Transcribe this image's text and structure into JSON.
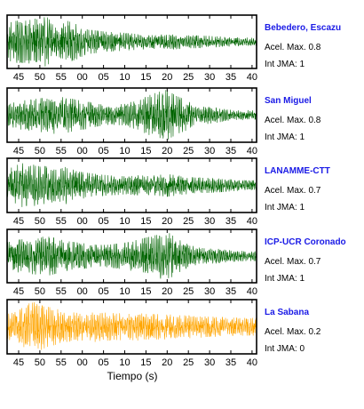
{
  "chart_data": {
    "type": "line",
    "xlabel": "Tiempo (s)",
    "x_tick_labels": [
      "45",
      "50",
      "55",
      "00",
      "05",
      "10",
      "15",
      "20",
      "25",
      "30",
      "35",
      "40"
    ],
    "panels": [
      {
        "station": "Bebedero, Escazu",
        "color": "#006400",
        "accel_max": "Acel. Max. 0.8",
        "int_jma": "Int JMA: 1",
        "envelope": [
          0.75,
          0.85,
          0.85,
          0.95,
          1.0,
          0.55,
          0.85,
          0.7,
          0.5,
          0.45,
          0.4,
          0.38,
          0.35,
          0.32,
          0.3,
          0.28,
          0.28,
          0.3,
          0.26,
          0.26,
          0.24,
          0.22,
          0.2,
          0.18,
          0.17,
          0.15
        ]
      },
      {
        "station": "San Miguel",
        "color": "#006400",
        "accel_max": "Acel. Max. 0.8",
        "int_jma": "Int JMA: 1",
        "envelope": [
          0.4,
          0.55,
          0.6,
          0.65,
          0.7,
          0.75,
          0.7,
          0.6,
          0.55,
          0.45,
          0.4,
          0.38,
          0.5,
          0.55,
          0.75,
          0.9,
          1.0,
          0.75,
          0.6,
          0.3,
          0.35,
          0.3,
          0.22,
          0.2,
          0.2,
          0.18
        ]
      },
      {
        "station": "LANAMME-CTT",
        "color": "#006400",
        "accel_max": "Acel. Max. 0.7",
        "int_jma": "Int JMA: 1",
        "envelope": [
          0.55,
          0.9,
          0.85,
          0.8,
          0.75,
          0.6,
          0.75,
          0.55,
          0.5,
          0.45,
          0.4,
          0.38,
          0.35,
          0.4,
          0.38,
          0.4,
          0.45,
          0.4,
          0.35,
          0.3,
          0.3,
          0.28,
          0.25,
          0.22,
          0.2,
          0.2
        ]
      },
      {
        "station": "ICP-UCR Coronado",
        "color": "#006400",
        "accel_max": "Acel. Max. 0.7",
        "int_jma": "Int JMA: 1",
        "envelope": [
          0.55,
          0.65,
          0.7,
          0.75,
          0.8,
          0.7,
          0.6,
          0.55,
          0.5,
          0.45,
          0.45,
          0.5,
          0.55,
          0.65,
          0.75,
          0.85,
          1.0,
          0.7,
          0.5,
          0.35,
          0.3,
          0.3,
          0.25,
          0.22,
          0.2,
          0.2
        ]
      },
      {
        "station": "La Sabana",
        "color": "#ffa500",
        "accel_max": "Acel. Max. 0.2",
        "int_jma": "Int JMA: 0",
        "envelope": [
          0.5,
          0.6,
          0.9,
          1.0,
          0.8,
          0.7,
          0.6,
          0.55,
          0.6,
          0.6,
          0.55,
          0.55,
          0.5,
          0.55,
          0.5,
          0.5,
          0.5,
          0.45,
          0.45,
          0.45,
          0.4,
          0.4,
          0.38,
          0.35,
          0.35,
          0.35
        ]
      }
    ]
  }
}
